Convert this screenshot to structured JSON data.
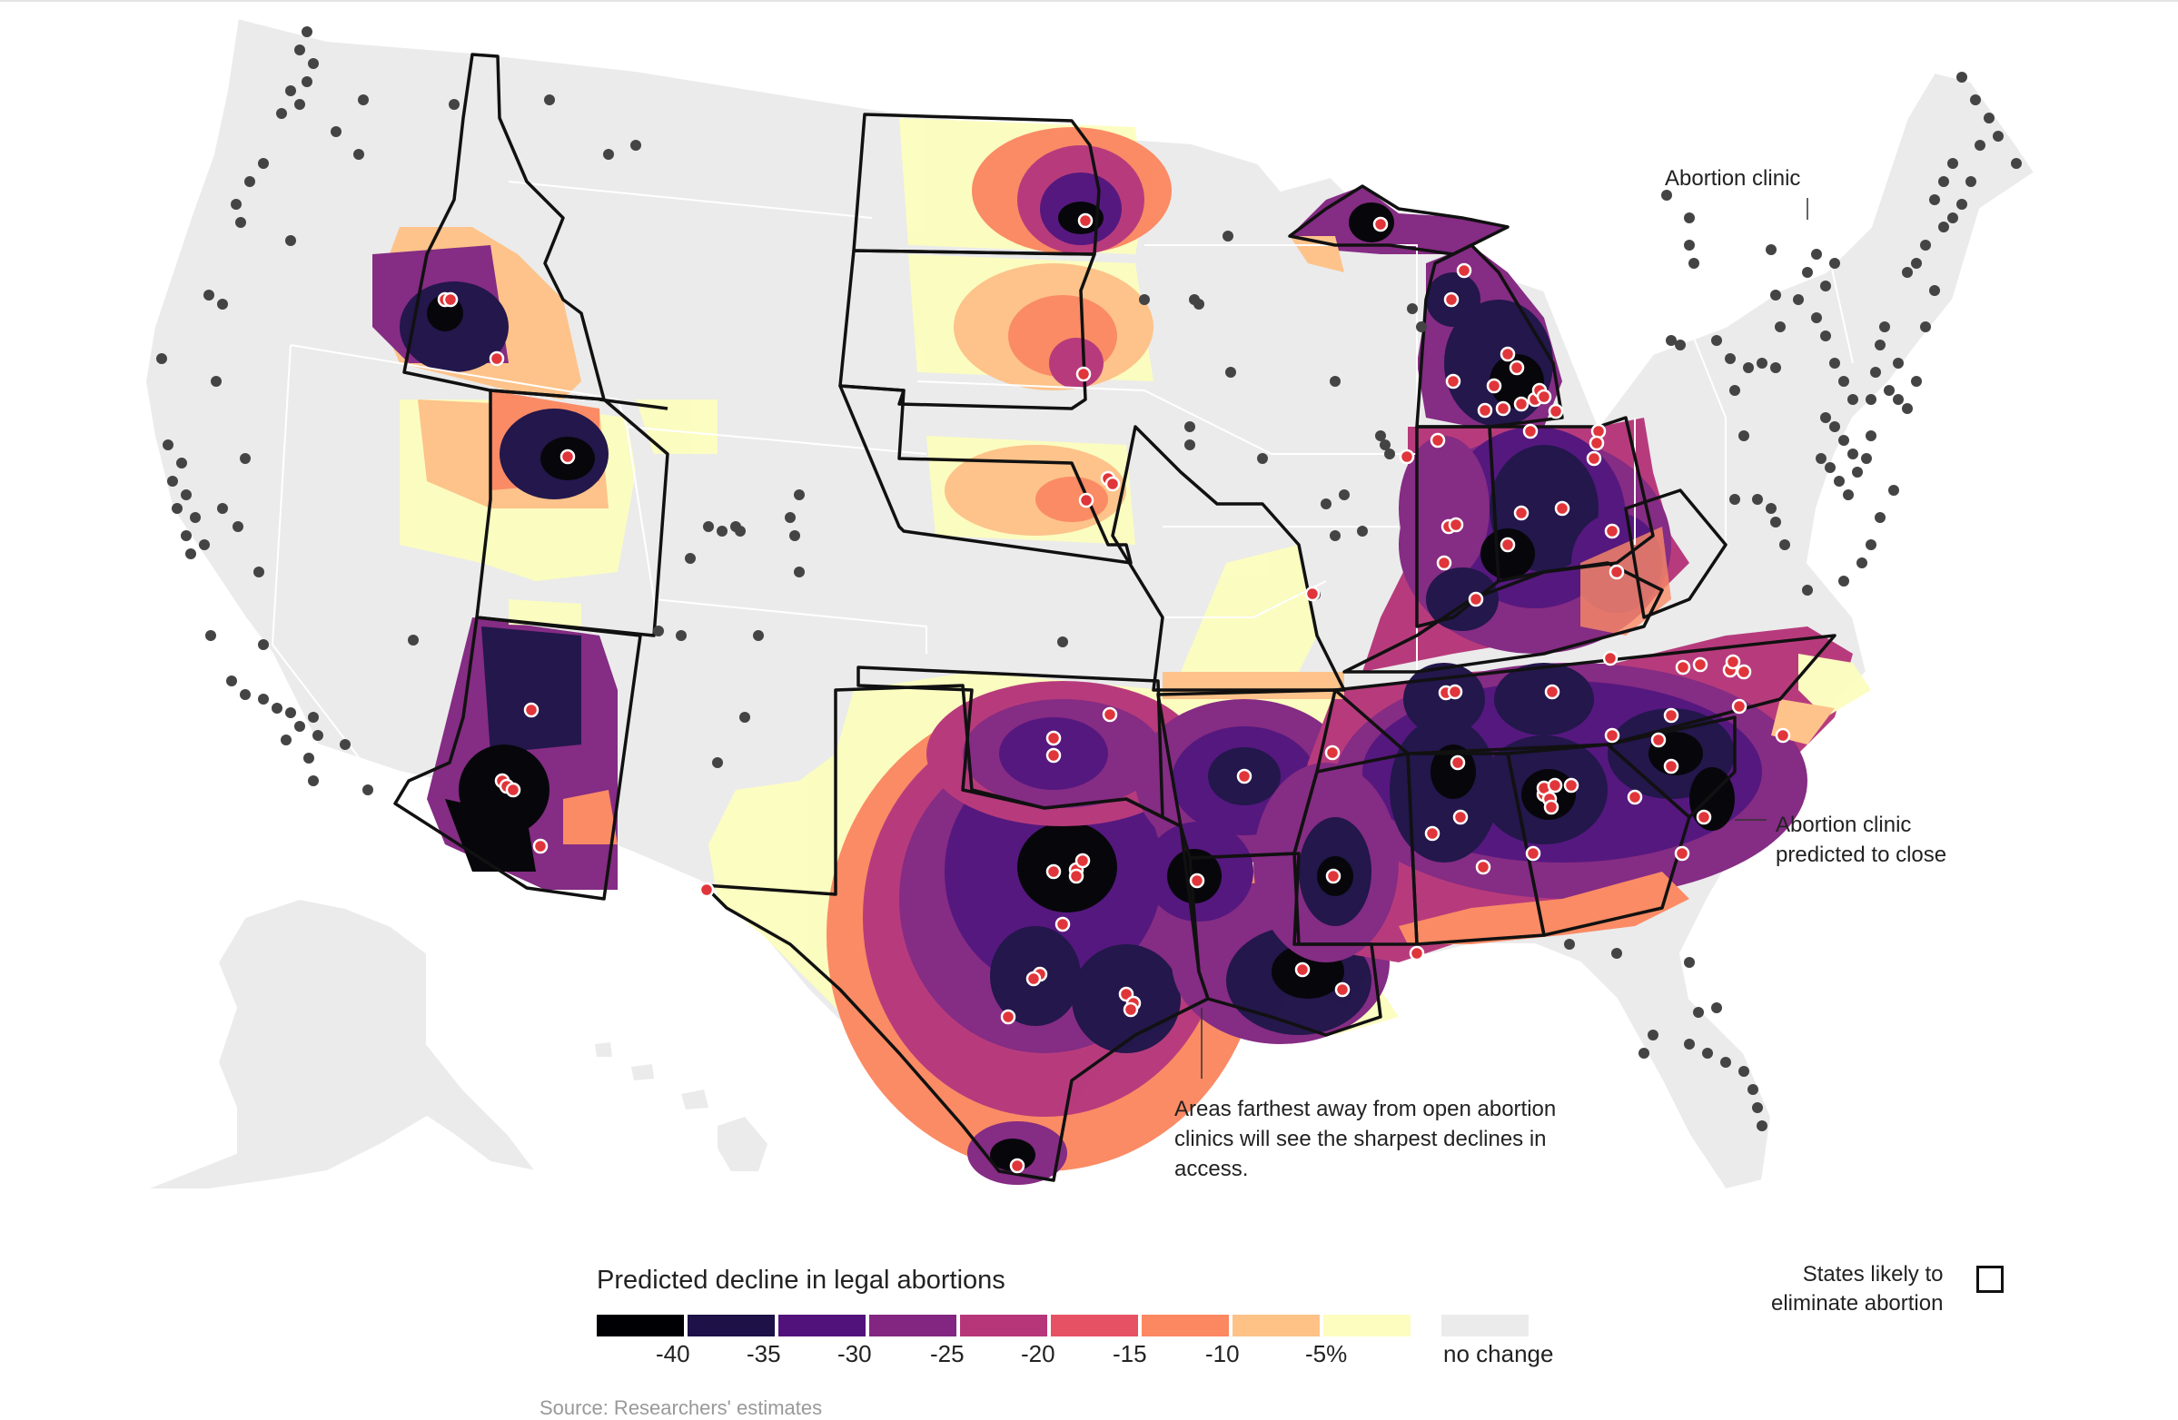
{
  "map_title": "",
  "annotations": {
    "clinic": "Abortion clinic",
    "closing_line1": "Abortion clinic",
    "closing_line2": "predicted to close",
    "farthest_line1": "Areas farthest away from open abortion",
    "farthest_line2": "clinics will see the sharpest declines in",
    "farthest_line3": "access."
  },
  "legend": {
    "title": "Predicted decline in legal abortions",
    "colors": [
      "#000004",
      "#1d1147",
      "#51127c",
      "#822681",
      "#b63679",
      "#e65164",
      "#fb8861",
      "#fec287",
      "#fcfdbf",
      "#ebebeb"
    ],
    "tick_labels": [
      "-40",
      "-35",
      "-30",
      "-25",
      "-20",
      "-15",
      "-10",
      "-5%",
      "no change"
    ]
  },
  "states_legend": {
    "line1": "States likely to",
    "line2": "eliminate abortion"
  },
  "source": "Source: Researchers' estimates",
  "colors": {
    "land": "#ebebeb",
    "state_border": "#ffffff",
    "ban_border": "#111111",
    "clinic_open": "#444444",
    "clinic_closing": "#e0353a"
  }
}
